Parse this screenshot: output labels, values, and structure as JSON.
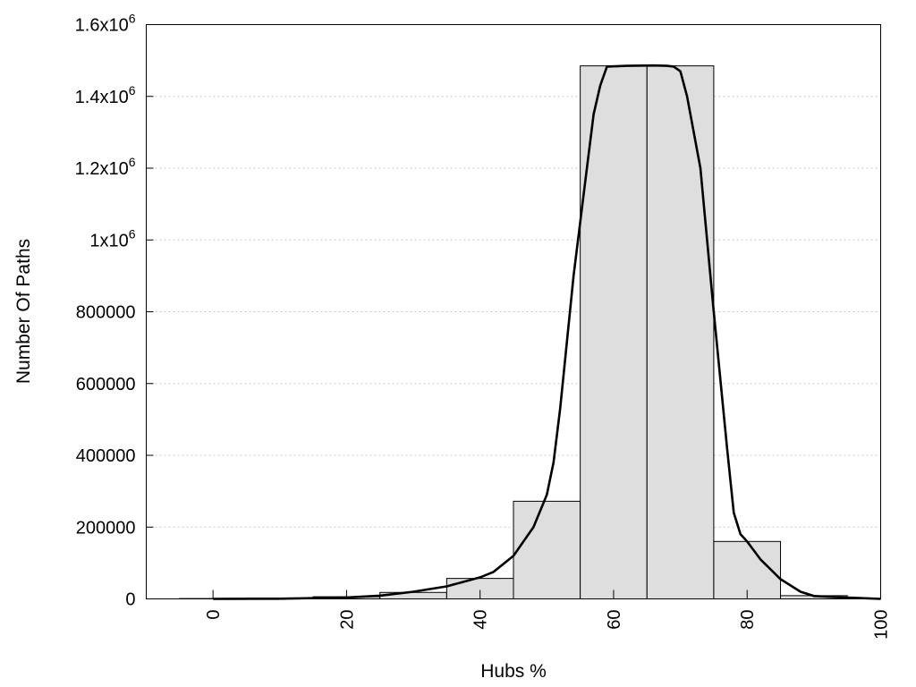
{
  "chart_data": {
    "type": "bar",
    "xlabel": "Hubs %",
    "ylabel": "Number Of Paths",
    "xlim": [
      -10,
      100
    ],
    "ylim": [
      0,
      1600000
    ],
    "x_ticks": [
      {
        "value": 0,
        "label": "0"
      },
      {
        "value": 20,
        "label": "20"
      },
      {
        "value": 40,
        "label": "40"
      },
      {
        "value": 60,
        "label": "60"
      },
      {
        "value": 80,
        "label": "80"
      },
      {
        "value": 100,
        "label": "100"
      }
    ],
    "y_ticks": [
      {
        "value": 0,
        "label": "0"
      },
      {
        "value": 200000,
        "label": "200000"
      },
      {
        "value": 400000,
        "label": "400000"
      },
      {
        "value": 600000,
        "label": "600000"
      },
      {
        "value": 800000,
        "label": "800000"
      },
      {
        "value": 1000000,
        "label": "1x10",
        "exp": "6"
      },
      {
        "value": 1200000,
        "label": "1.2x10",
        "exp": "6"
      },
      {
        "value": 1400000,
        "label": "1.4x10",
        "exp": "6"
      },
      {
        "value": 1600000,
        "label": "1.6x10",
        "exp": "6"
      }
    ],
    "grid": true,
    "bin_width": 10,
    "bins": [
      {
        "center": 0,
        "value": 1000
      },
      {
        "center": 10,
        "value": 2500
      },
      {
        "center": 20,
        "value": 6000
      },
      {
        "center": 30,
        "value": 18000
      },
      {
        "center": 40,
        "value": 57000
      },
      {
        "center": 50,
        "value": 272000
      },
      {
        "center": 60,
        "value": 1485000
      },
      {
        "center": 70,
        "value": 1485000
      },
      {
        "center": 80,
        "value": 160000
      },
      {
        "center": 90,
        "value": 9000
      },
      {
        "center": 100,
        "value": 0
      }
    ],
    "curve": [
      [
        0,
        0
      ],
      [
        10,
        500
      ],
      [
        20,
        4000
      ],
      [
        25,
        9000
      ],
      [
        30,
        20000
      ],
      [
        35,
        35000
      ],
      [
        40,
        60000
      ],
      [
        42,
        75000
      ],
      [
        45,
        120000
      ],
      [
        48,
        200000
      ],
      [
        50,
        290000
      ],
      [
        51,
        380000
      ],
      [
        52,
        530000
      ],
      [
        54,
        900000
      ],
      [
        56,
        1200000
      ],
      [
        57,
        1350000
      ],
      [
        58,
        1430000
      ],
      [
        59,
        1483000
      ],
      [
        62,
        1485000
      ],
      [
        66,
        1486000
      ],
      [
        68,
        1485000
      ],
      [
        69,
        1483000
      ],
      [
        70,
        1470000
      ],
      [
        71,
        1400000
      ],
      [
        73,
        1200000
      ],
      [
        75,
        800000
      ],
      [
        77,
        420000
      ],
      [
        78,
        240000
      ],
      [
        79,
        180000
      ],
      [
        80,
        160000
      ],
      [
        82,
        110000
      ],
      [
        85,
        55000
      ],
      [
        88,
        20000
      ],
      [
        90,
        8000
      ],
      [
        93,
        5000
      ],
      [
        96,
        3000
      ],
      [
        100,
        0
      ]
    ]
  }
}
